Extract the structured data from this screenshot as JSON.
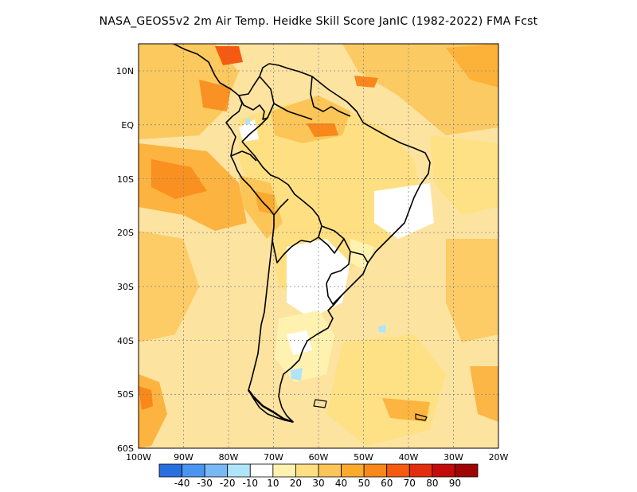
{
  "title": "NASA_GEOS5v2  2m Air Temp. Heidke Skill Score JanIC (1982-2022) FMA Fcst",
  "map": {
    "region": "South America",
    "lat_labels": [
      "10N",
      "EQ",
      "10S",
      "20S",
      "30S",
      "40S",
      "50S",
      "60S"
    ],
    "lon_labels": [
      "100W",
      "90W",
      "80W",
      "70W",
      "60W",
      "50W",
      "40W",
      "30W",
      "20W"
    ],
    "grid": true
  },
  "colorbar": {
    "labels": [
      "-40",
      "-30",
      "-20",
      "-10",
      "10",
      "20",
      "30",
      "40",
      "50",
      "60",
      "70",
      "80",
      "90"
    ],
    "colors": [
      "#2a6fe0",
      "#4a95f0",
      "#7ab8f5",
      "#b0e4fb",
      "#ffffff",
      "#fff2b0",
      "#fee082",
      "#fcc557",
      "#fbaa2e",
      "#f98719",
      "#f55a10",
      "#e32e0d",
      "#c20c0a",
      "#9e0606"
    ]
  },
  "colors": {
    "land_outline": "#000000",
    "grid": "#888888",
    "background_field": "#fde3a0"
  }
}
